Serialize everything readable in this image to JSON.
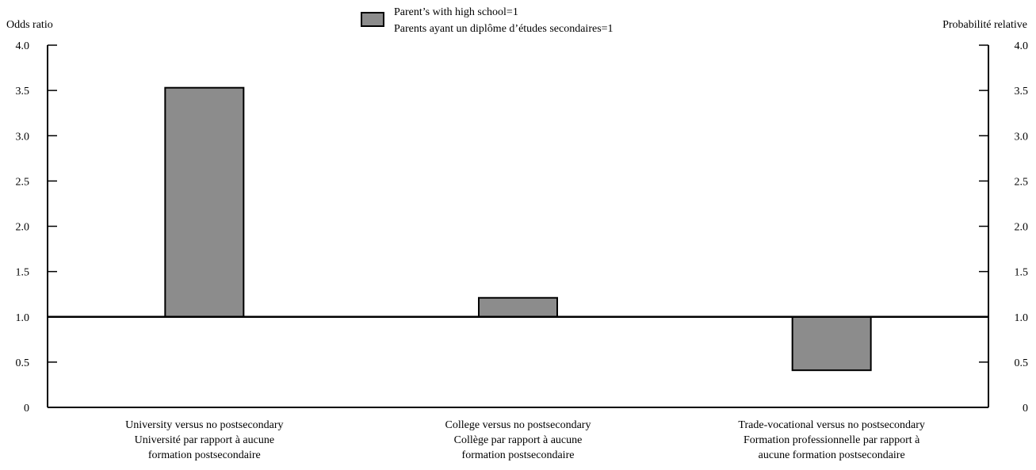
{
  "chart_data": {
    "type": "bar",
    "ylabel_left": "Odds ratio",
    "ylabel_right": "Probabilité relative",
    "legend": {
      "label_en": "Parent’s with high school=1",
      "label_fr": "Parents ayant un diplôme d’études secondaires=1",
      "placement": "top-center"
    },
    "baseline": 1.0,
    "ylim": [
      0,
      4.0
    ],
    "yticks": [
      {
        "value": 0,
        "label": "0"
      },
      {
        "value": 0.5,
        "label": "0.5"
      },
      {
        "value": 1.0,
        "label": "1.0"
      },
      {
        "value": 1.5,
        "label": "1.5"
      },
      {
        "value": 2.0,
        "label": "2.0"
      },
      {
        "value": 2.5,
        "label": "2.5"
      },
      {
        "value": 3.0,
        "label": "3.0"
      },
      {
        "value": 3.5,
        "label": "3.5"
      },
      {
        "value": 4.0,
        "label": "4.0"
      }
    ],
    "categories": [
      [
        "University versus no postsecondary",
        "Université par rapport à aucune",
        "formation postsecondaire"
      ],
      [
        "College versus no postsecondary",
        "Collège par rapport à aucune",
        "formation postsecondaire"
      ],
      [
        "Trade-vocational versus no postsecondary",
        "Formation professionnelle par rapport à",
        "aucune formation postsecondaire"
      ]
    ],
    "values": [
      3.53,
      1.21,
      0.41
    ],
    "grid": false,
    "colors": {
      "bar": "#8c8c8c",
      "stroke": "#000000"
    }
  }
}
